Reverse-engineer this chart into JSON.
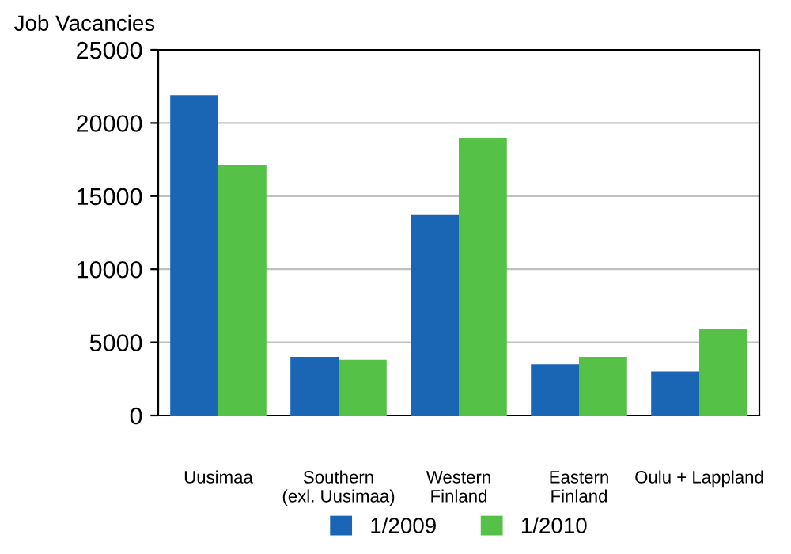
{
  "chart_data": {
    "type": "bar",
    "ylabel": "Job Vacancies",
    "categories": [
      "Uusimaa",
      "Southern\n(exl. Uusimaa)",
      "Western\nFinland",
      "Eastern\nFinland",
      "Oulu + Lappland"
    ],
    "series": [
      {
        "name": "1/2009",
        "color": "#1a66b4",
        "values": [
          21900,
          4000,
          13700,
          3500,
          3000
        ]
      },
      {
        "name": "1/2010",
        "color": "#55c247",
        "values": [
          17100,
          3800,
          19000,
          4000,
          5900
        ]
      }
    ],
    "ylim": [
      0,
      25000
    ],
    "yticks": [
      0,
      5000,
      10000,
      15000,
      20000,
      25000
    ],
    "grid": "y",
    "legend": "bottom"
  }
}
